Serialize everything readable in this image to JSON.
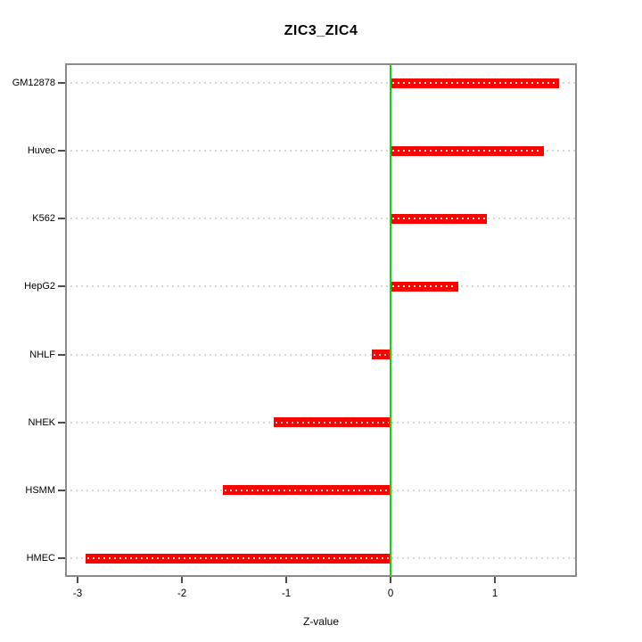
{
  "figure": {
    "background": "#ffffff"
  },
  "chart_data": {
    "type": "bar",
    "orientation": "horizontal",
    "title": "ZIC3_ZIC4",
    "xlabel": "Z-value",
    "ylabel": "",
    "categories": [
      "GM12878",
      "Huvec",
      "K562",
      "HepG2",
      "NHLF",
      "NHEK",
      "HSMM",
      "HMEC"
    ],
    "values": [
      1.61,
      1.47,
      0.92,
      0.65,
      -0.18,
      -1.12,
      -1.61,
      -2.92
    ],
    "x_ticks": [
      "-3",
      "-2",
      "-1",
      "0",
      "1"
    ],
    "x_tick_values": [
      -3,
      -2,
      -1,
      0,
      1
    ],
    "xlim": [
      -3.12,
      1.785
    ],
    "zero_line_value": 0,
    "grid": "dotted-horizontal",
    "legend_position": "none",
    "colors": {
      "bar": "#fe0000",
      "bar_dot_overlay": "#ffffff",
      "zero_line": "#00e000",
      "grid_line": "#d6d6d6",
      "frame_border": "#8a8a8a",
      "tick": "#4e4e4e",
      "text": "#000000"
    }
  }
}
